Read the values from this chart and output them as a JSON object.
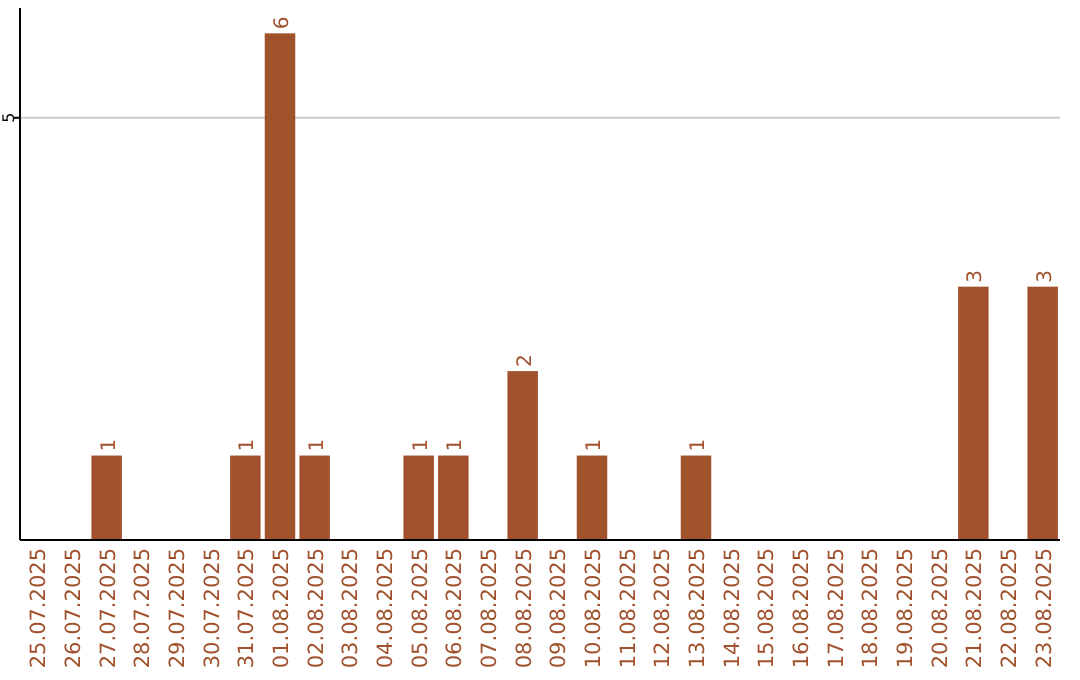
{
  "chart_data": {
    "type": "bar",
    "categories": [
      "25.07.2025",
      "26.07.2025",
      "27.07.2025",
      "28.07.2025",
      "29.07.2025",
      "30.07.2025",
      "31.07.2025",
      "01.08.2025",
      "02.08.2025",
      "03.08.2025",
      "04.08.2025",
      "05.08.2025",
      "06.08.2025",
      "07.08.2025",
      "08.08.2025",
      "09.08.2025",
      "10.08.2025",
      "11.08.2025",
      "12.08.2025",
      "13.08.2025",
      "14.08.2025",
      "15.08.2025",
      "16.08.2025",
      "17.08.2025",
      "18.08.2025",
      "19.08.2025",
      "20.08.2025",
      "21.08.2025",
      "22.08.2025",
      "23.08.2025"
    ],
    "values": [
      null,
      null,
      1,
      null,
      null,
      null,
      1,
      6,
      1,
      null,
      null,
      1,
      1,
      null,
      2,
      null,
      1,
      null,
      null,
      1,
      null,
      null,
      null,
      null,
      null,
      null,
      null,
      3,
      null,
      3
    ],
    "color": "#a0522d",
    "ylim": [
      0,
      6.3
    ],
    "yticks": [
      5
    ],
    "grid": "y",
    "data_labels": true
  }
}
